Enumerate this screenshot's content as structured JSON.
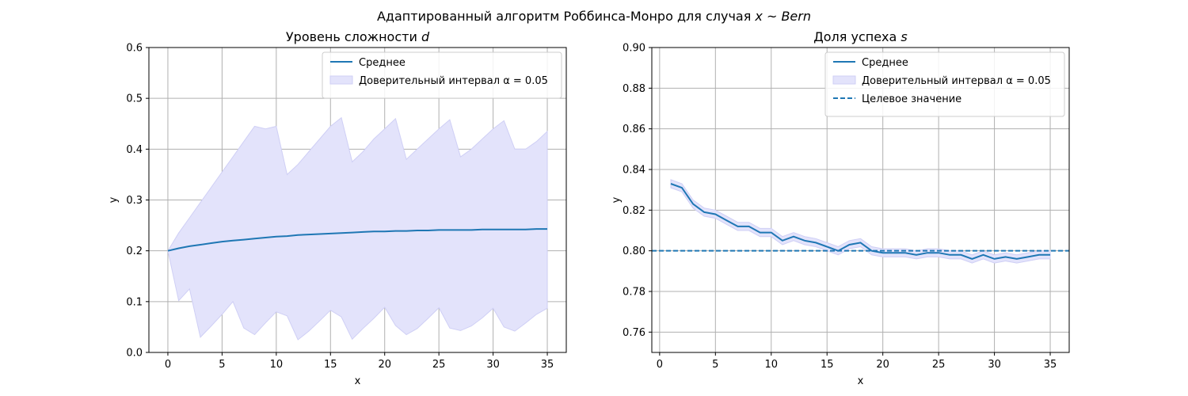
{
  "figure": {
    "suptitle_prefix": "Адаптированный алгоритм Роббинса-Монро для случая ",
    "suptitle_math": "x ~ Bern"
  },
  "chart_data": [
    {
      "type": "line",
      "title_prefix": "Уровень сложности ",
      "title_math": "d",
      "xlabel": "x",
      "ylabel": "y",
      "xlim": [
        -1.75,
        36.75
      ],
      "ylim": [
        0,
        0.6
      ],
      "xticks": [
        0,
        5,
        10,
        15,
        20,
        25,
        30,
        35
      ],
      "yticks": [
        0.0,
        0.1,
        0.2,
        0.3,
        0.4,
        0.5,
        0.6
      ],
      "ytick_labels": [
        "0.0",
        "0.1",
        "0.2",
        "0.3",
        "0.4",
        "0.5",
        "0.6"
      ],
      "grid": true,
      "legend_position": "top-right",
      "colors": {
        "line": "#1f77b4",
        "band": "#e3e3fb",
        "band_edge": "#cfcff5"
      },
      "series": [
        {
          "name": "Среднее",
          "kind": "line",
          "x": [
            0,
            1,
            2,
            3,
            4,
            5,
            6,
            7,
            8,
            9,
            10,
            11,
            12,
            13,
            14,
            15,
            16,
            17,
            18,
            19,
            20,
            21,
            22,
            23,
            24,
            25,
            26,
            27,
            28,
            29,
            30,
            31,
            32,
            33,
            34,
            35
          ],
          "y": [
            0.2,
            0.205,
            0.209,
            0.212,
            0.215,
            0.218,
            0.22,
            0.222,
            0.224,
            0.226,
            0.228,
            0.229,
            0.231,
            0.232,
            0.233,
            0.234,
            0.235,
            0.236,
            0.237,
            0.238,
            0.238,
            0.239,
            0.239,
            0.24,
            0.24,
            0.241,
            0.241,
            0.241,
            0.241,
            0.242,
            0.242,
            0.242,
            0.242,
            0.242,
            0.243,
            0.243
          ]
        },
        {
          "name": "Доверительный интервал ",
          "name_math": "α = 0.05",
          "kind": "band",
          "x": [
            0,
            1,
            2,
            3,
            4,
            5,
            6,
            7,
            8,
            9,
            10,
            11,
            12,
            13,
            14,
            15,
            16,
            17,
            18,
            19,
            20,
            21,
            22,
            23,
            24,
            25,
            26,
            27,
            28,
            29,
            30,
            31,
            32,
            33,
            34,
            35
          ],
          "lower": [
            0.2,
            0.102,
            0.125,
            0.03,
            0.052,
            0.075,
            0.1,
            0.048,
            0.035,
            0.058,
            0.08,
            0.072,
            0.025,
            0.042,
            0.062,
            0.083,
            0.07,
            0.026,
            0.047,
            0.067,
            0.089,
            0.053,
            0.035,
            0.047,
            0.067,
            0.088,
            0.048,
            0.043,
            0.052,
            0.068,
            0.087,
            0.05,
            0.042,
            0.058,
            0.075,
            0.087
          ],
          "upper": [
            0.2,
            0.235,
            0.265,
            0.295,
            0.325,
            0.355,
            0.385,
            0.415,
            0.445,
            0.44,
            0.445,
            0.35,
            0.37,
            0.395,
            0.42,
            0.445,
            0.462,
            0.375,
            0.395,
            0.42,
            0.44,
            0.46,
            0.38,
            0.4,
            0.42,
            0.44,
            0.458,
            0.385,
            0.4,
            0.42,
            0.44,
            0.456,
            0.4,
            0.4,
            0.415,
            0.435
          ]
        }
      ]
    },
    {
      "type": "line",
      "title_prefix": "Доля успеха ",
      "title_math": "s",
      "xlabel": "x",
      "ylabel": "y",
      "xlim": [
        -0.7,
        36.7
      ],
      "ylim": [
        0.75,
        0.9
      ],
      "xticks": [
        0,
        5,
        10,
        15,
        20,
        25,
        30,
        35
      ],
      "yticks": [
        0.76,
        0.78,
        0.8,
        0.82,
        0.84,
        0.86,
        0.88,
        0.9
      ],
      "ytick_labels": [
        "0.76",
        "0.78",
        "0.80",
        "0.82",
        "0.84",
        "0.86",
        "0.88",
        "0.90"
      ],
      "grid": true,
      "legend_position": "top-right",
      "colors": {
        "line": "#1f77b4",
        "band": "#e3e3fb",
        "band_edge": "#cfcff5",
        "target": "#1f77b4"
      },
      "series": [
        {
          "name": "Среднее",
          "kind": "line",
          "x": [
            1,
            2,
            3,
            4,
            5,
            6,
            7,
            8,
            9,
            10,
            11,
            12,
            13,
            14,
            15,
            16,
            17,
            18,
            19,
            20,
            21,
            22,
            23,
            24,
            25,
            26,
            27,
            28,
            29,
            30,
            31,
            32,
            33,
            34,
            35
          ],
          "y": [
            0.833,
            0.831,
            0.823,
            0.819,
            0.818,
            0.815,
            0.812,
            0.812,
            0.809,
            0.809,
            0.805,
            0.807,
            0.805,
            0.804,
            0.802,
            0.8,
            0.803,
            0.804,
            0.8,
            0.799,
            0.799,
            0.799,
            0.798,
            0.799,
            0.799,
            0.798,
            0.798,
            0.796,
            0.798,
            0.796,
            0.797,
            0.796,
            0.797,
            0.798,
            0.798
          ]
        },
        {
          "name": "Доверительный интервал ",
          "name_math": "α = 0.05",
          "kind": "band",
          "x": [
            1,
            2,
            3,
            4,
            5,
            6,
            7,
            8,
            9,
            10,
            11,
            12,
            13,
            14,
            15,
            16,
            17,
            18,
            19,
            20,
            21,
            22,
            23,
            24,
            25,
            26,
            27,
            28,
            29,
            30,
            31,
            32,
            33,
            34,
            35
          ],
          "lower": [
            0.831,
            0.829,
            0.821,
            0.817,
            0.816,
            0.813,
            0.81,
            0.81,
            0.807,
            0.807,
            0.803,
            0.805,
            0.803,
            0.802,
            0.8,
            0.798,
            0.801,
            0.802,
            0.798,
            0.797,
            0.797,
            0.797,
            0.796,
            0.797,
            0.797,
            0.796,
            0.796,
            0.794,
            0.796,
            0.794,
            0.795,
            0.794,
            0.795,
            0.796,
            0.796
          ],
          "upper": [
            0.835,
            0.833,
            0.825,
            0.821,
            0.82,
            0.817,
            0.814,
            0.814,
            0.811,
            0.811,
            0.807,
            0.809,
            0.807,
            0.806,
            0.804,
            0.802,
            0.805,
            0.806,
            0.802,
            0.801,
            0.801,
            0.801,
            0.8,
            0.801,
            0.801,
            0.8,
            0.8,
            0.798,
            0.8,
            0.798,
            0.799,
            0.798,
            0.799,
            0.8,
            0.8
          ]
        },
        {
          "name": "Целевое значение",
          "kind": "hline",
          "y": 0.8
        }
      ]
    }
  ]
}
